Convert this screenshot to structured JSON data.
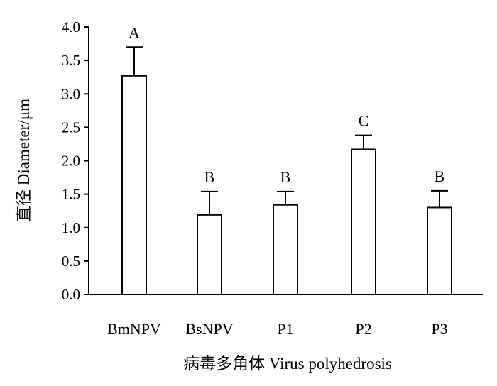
{
  "chart_data": {
    "type": "bar",
    "categories": [
      "BmNPV",
      "BsNPV",
      "P1",
      "P2",
      "P3"
    ],
    "values": [
      3.27,
      1.19,
      1.34,
      2.17,
      1.3
    ],
    "errors": [
      0.43,
      0.35,
      0.2,
      0.21,
      0.25
    ],
    "significance": [
      "A",
      "B",
      "B",
      "C",
      "B"
    ],
    "xlabel": "病毒多角体 Virus polyhedrosis",
    "ylabel": "直径 Diameter/μm",
    "ylim": [
      0,
      4.0
    ],
    "yticks": [
      "0.0",
      "0.5",
      "1.0",
      "1.5",
      "2.0",
      "2.5",
      "3.0",
      "3.5",
      "4.0"
    ],
    "grid": false,
    "colors": {
      "bar_fill": "#ffffff",
      "stroke": "#000000"
    }
  }
}
